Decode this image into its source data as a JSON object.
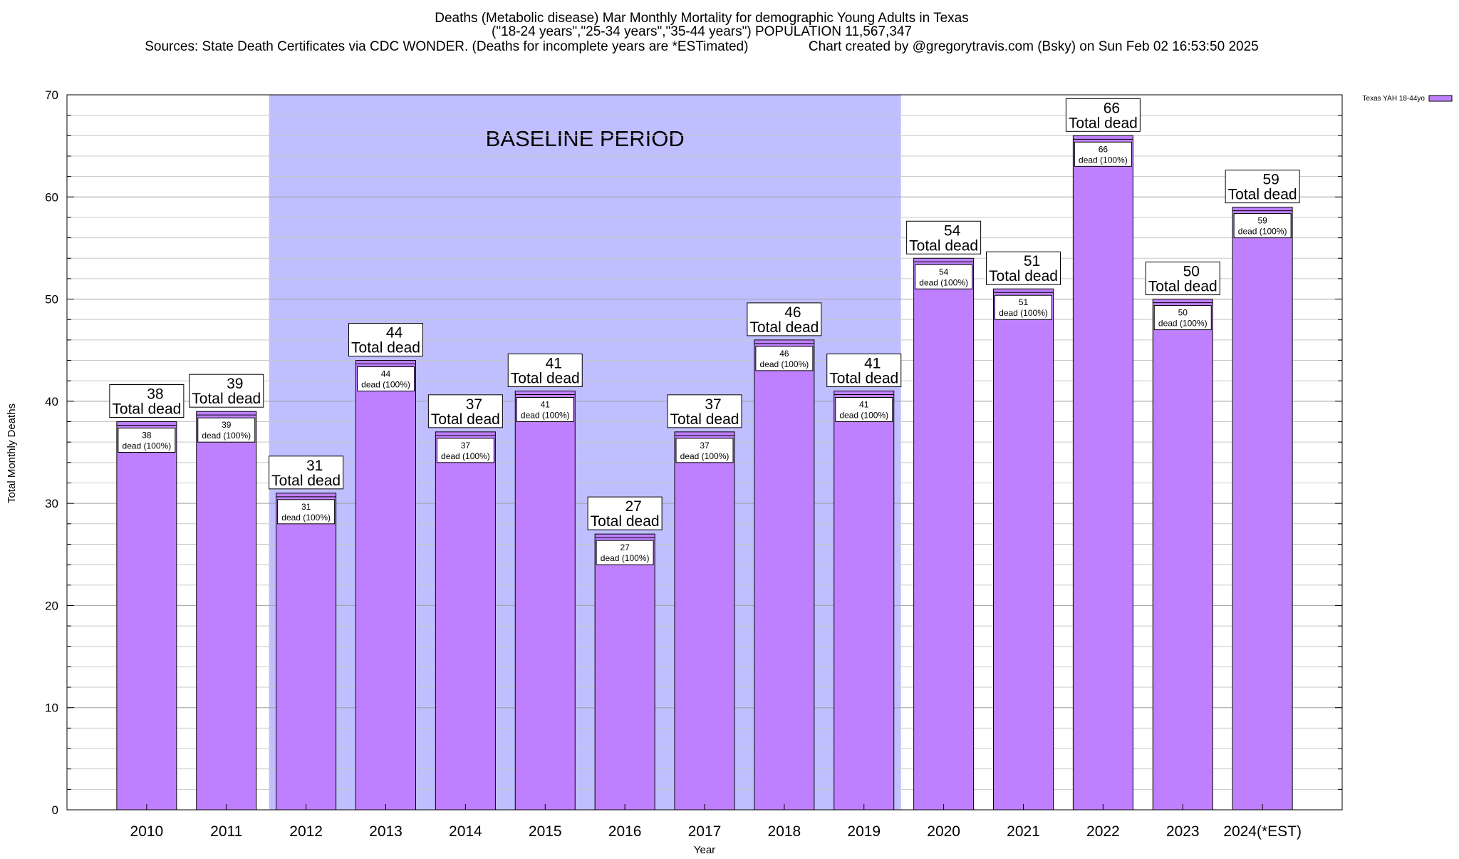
{
  "chart_data": {
    "type": "bar",
    "title_lines": [
      "Deaths (Metabolic disease) Mar Monthly Mortality for demographic Young Adults in Texas",
      "(\"18-24 years\",\"25-34 years\",\"35-44 years\") POPULATION 11,567,347",
      "Sources: State Death Certificates via CDC WONDER. (Deaths for incomplete years are *ESTimated)                Chart created by @gregorytravis.com (Bsky) on Sun Feb 02 16:53:50 2025"
    ],
    "xlabel": "Year",
    "ylabel": "Total Monthly Deaths",
    "ylim": [
      0,
      70
    ],
    "y_ticks": [
      0,
      10,
      20,
      30,
      40,
      50,
      60,
      70
    ],
    "minor_gridlines_per_major": 5,
    "grid": true,
    "categories": [
      "2010",
      "2011",
      "2012",
      "2013",
      "2014",
      "2015",
      "2016",
      "2017",
      "2018",
      "2019",
      "2020",
      "2021",
      "2022",
      "2023",
      "2024(*EST)"
    ],
    "series": [
      {
        "name": "Texas YAH 18-44yo",
        "color": "#bf80ff",
        "values": [
          38,
          39,
          31,
          44,
          37,
          41,
          27,
          37,
          46,
          41,
          54,
          51,
          66,
          50,
          59
        ]
      }
    ],
    "label_top_suffix": "Total dead",
    "label_inner_suffix": "dead (100%)",
    "baseline": {
      "label": "BASELINE PERIOD",
      "from": "2012",
      "to": "2019",
      "color": "#bfbfff"
    },
    "legend_position": "top-right"
  }
}
